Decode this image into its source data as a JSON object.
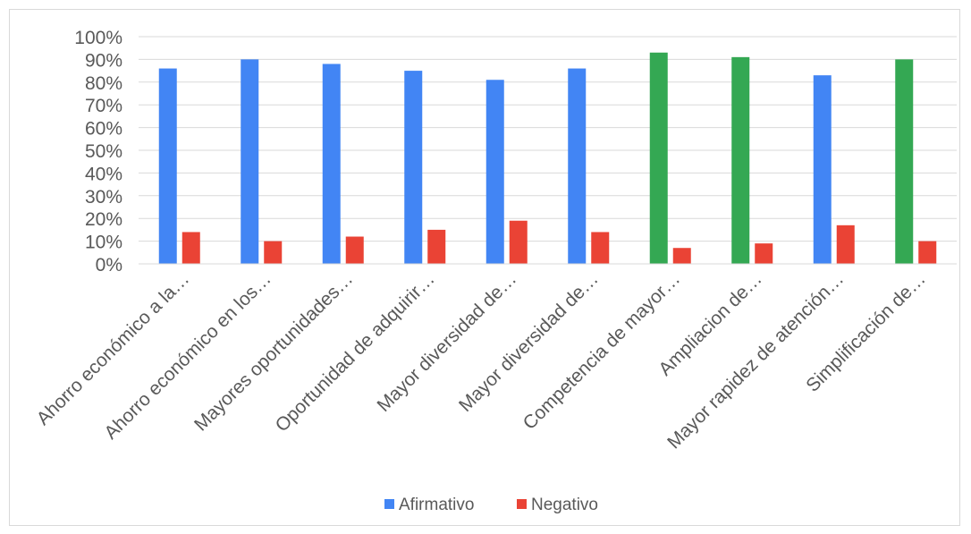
{
  "chart_data": {
    "type": "bar",
    "categories": [
      "Ahorro económico a la…",
      "Ahorro económico en los…",
      "Mayores oportunidades…",
      "Oportunidad de adquirir…",
      "Mayor diversidad de…",
      "Mayor diversidad de…",
      "Competencia de mayor…",
      "Ampliacion de…",
      "Mayor rapidez de atención…",
      "Simplificación de…"
    ],
    "series": [
      {
        "name": "Afirmativo",
        "color": "#4285f4",
        "highlight_color": "#34a853",
        "highlight_indices": [
          6,
          7,
          9
        ],
        "values": [
          86,
          90,
          88,
          85,
          81,
          86,
          93,
          91,
          83,
          90
        ]
      },
      {
        "name": "Negativo",
        "color": "#ea4335",
        "values": [
          14,
          10,
          12,
          15,
          19,
          14,
          7,
          9,
          17,
          10
        ]
      }
    ],
    "title": "",
    "xlabel": "",
    "ylabel": "",
    "ylim": [
      0,
      100
    ],
    "yticks": [
      "0%",
      "10%",
      "20%",
      "30%",
      "40%",
      "50%",
      "60%",
      "70%",
      "80%",
      "90%",
      "100%"
    ],
    "grid": true,
    "legend": "bottom"
  }
}
